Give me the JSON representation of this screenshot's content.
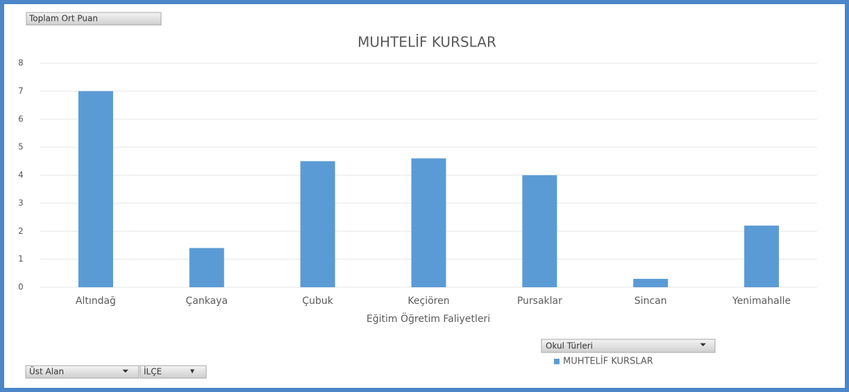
{
  "chart_data": {
    "type": "bar",
    "title": "MUHTELİF KURSLAR",
    "xlabel": "Eğitim Öğretim Faliyetleri",
    "categories": [
      "Altındağ",
      "Çankaya",
      "Çubuk",
      "Keçiören",
      "Pursaklar",
      "Sincan",
      "Yenimahalle"
    ],
    "series": [
      {
        "name": "MUHTELİF KURSLAR",
        "color": "#5b9bd5",
        "values": [
          7,
          1.4,
          4.5,
          4.6,
          4,
          0.3,
          2.2
        ]
      }
    ],
    "ylim": [
      0,
      8
    ],
    "yticks": [
      0,
      1,
      2,
      3,
      4,
      5,
      6,
      7,
      8
    ],
    "grid": true,
    "legend": "bottom-right"
  },
  "pivot_buttons": {
    "value_field": "Toplam Ort Puan",
    "legend_field": "Okul Türleri",
    "filter_field": "Üst Alan",
    "axis_field": "İLÇE"
  }
}
